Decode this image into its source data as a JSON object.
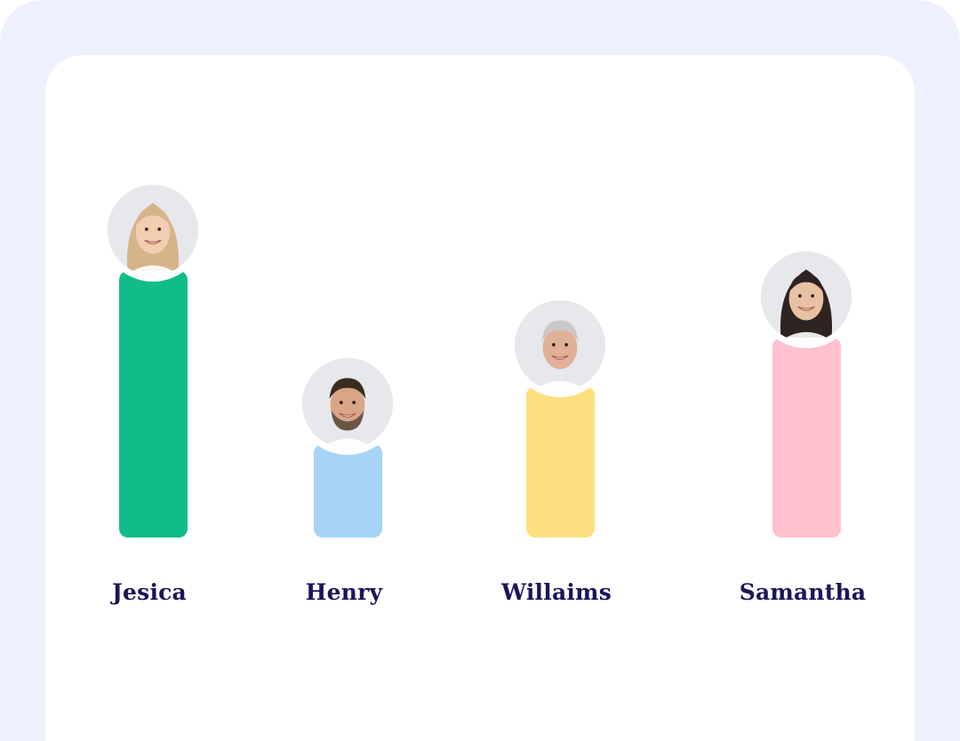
{
  "chart_data": {
    "type": "bar",
    "categories": [
      "Jesica",
      "Henry",
      "Willaims",
      "Samantha"
    ],
    "values": [
      300,
      105,
      170,
      225
    ],
    "colors": [
      "#10bd88",
      "#a5d4f7",
      "#fedf80",
      "#fec1cd"
    ],
    "avatars": [
      "woman-blonde-avatar",
      "man-beard-avatar",
      "man-gray-hair-avatar",
      "woman-dark-hair-avatar"
    ]
  }
}
